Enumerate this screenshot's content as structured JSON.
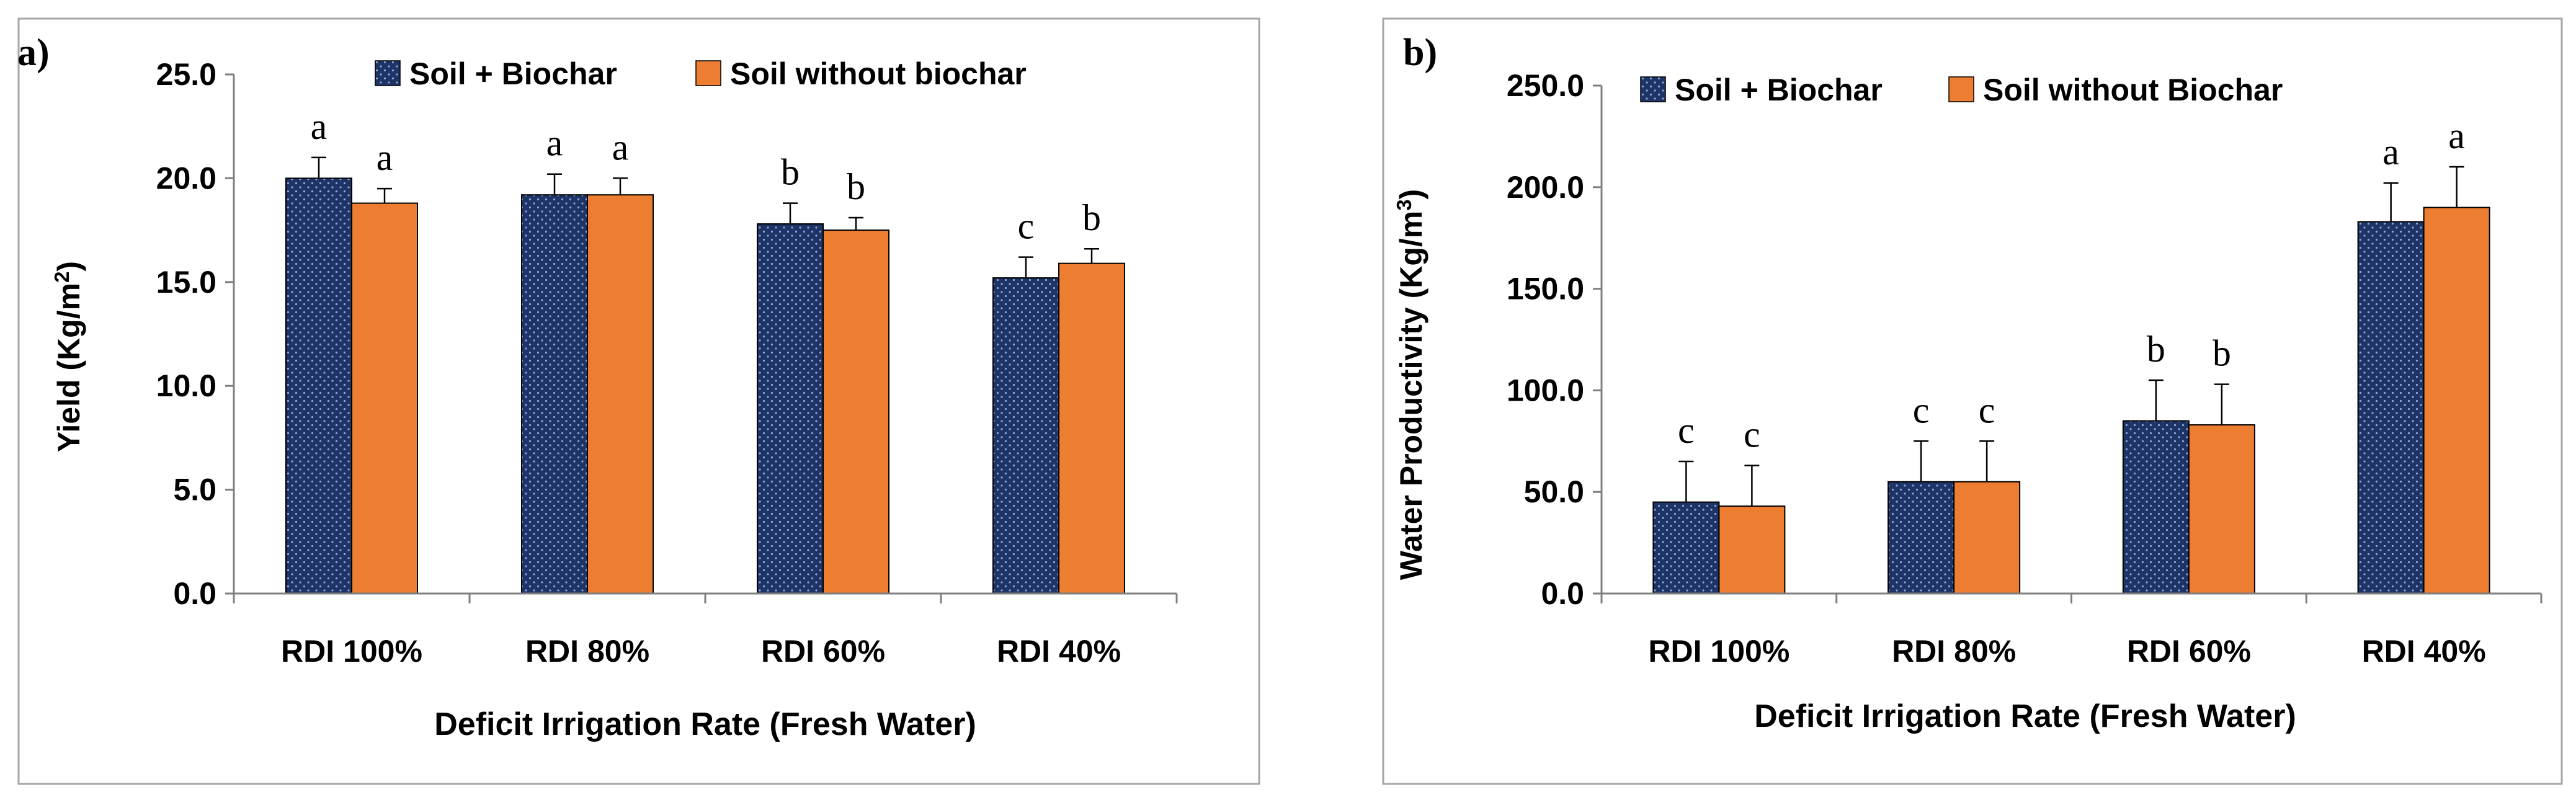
{
  "chart_data": [
    {
      "type": "bar",
      "panel_label": "a)",
      "title": "",
      "xlabel": "Deficit Irrigation Rate (Fresh Water)",
      "ylabel_main": "Yield (Kg/m",
      "ylabel_sup": "2",
      "ylabel_end": ")",
      "ylim": [
        0,
        25
      ],
      "yticks": [
        0,
        5,
        10,
        15,
        20,
        25
      ],
      "ytick_labels": [
        "0.0",
        "5.0",
        "10.0",
        "15.0",
        "20.0",
        "25.0"
      ],
      "grid": false,
      "legend_position": "top",
      "categories": [
        "RDI 100%",
        "RDI 80%",
        "RDI 60%",
        "RDI 40%"
      ],
      "series": [
        {
          "name": "Soil + Biochar",
          "color": "#1f3466",
          "pattern": "dotted",
          "values": [
            20.0,
            19.2,
            17.8,
            15.2
          ],
          "errors": [
            1.0,
            1.0,
            1.0,
            1.0
          ],
          "significance": [
            "a",
            "a",
            "b",
            "c"
          ]
        },
        {
          "name": "Soil without biochar",
          "color": "#ed7d31",
          "pattern": "solid",
          "values": [
            18.8,
            19.2,
            17.5,
            15.9
          ],
          "errors": [
            0.7,
            0.8,
            0.6,
            0.7
          ],
          "significance": [
            "a",
            "a",
            "b",
            "b"
          ]
        }
      ]
    },
    {
      "type": "bar",
      "panel_label": "b)",
      "title": "",
      "xlabel": "Deficit Irrigation Rate (Fresh Water)",
      "ylabel_main": "Water Productivity (Kg/m",
      "ylabel_sup": "3",
      "ylabel_end": ")",
      "ylim": [
        0,
        250
      ],
      "yticks": [
        0,
        50,
        100,
        150,
        200,
        250
      ],
      "ytick_labels": [
        "0.0",
        "50.0",
        "100.0",
        "150.0",
        "200.0",
        "250.0"
      ],
      "grid": false,
      "legend_position": "top",
      "categories": [
        "RDI 100%",
        "RDI 80%",
        "RDI 60%",
        "RDI 40%"
      ],
      "series": [
        {
          "name": "Soil + Biochar",
          "color": "#1f3466",
          "pattern": "dotted",
          "values": [
            45.0,
            55.0,
            85.0,
            183.0
          ],
          "errors": [
            20.0,
            20.0,
            20.0,
            19.0
          ],
          "significance": [
            "c",
            "c",
            "b",
            "a"
          ]
        },
        {
          "name": "Soil without Biochar",
          "color": "#ed7d31",
          "pattern": "solid",
          "values": [
            43.0,
            55.0,
            83.0,
            190.0
          ],
          "errors": [
            20.0,
            20.0,
            20.0,
            20.0
          ],
          "significance": [
            "c",
            "c",
            "b",
            "a"
          ]
        }
      ]
    }
  ]
}
